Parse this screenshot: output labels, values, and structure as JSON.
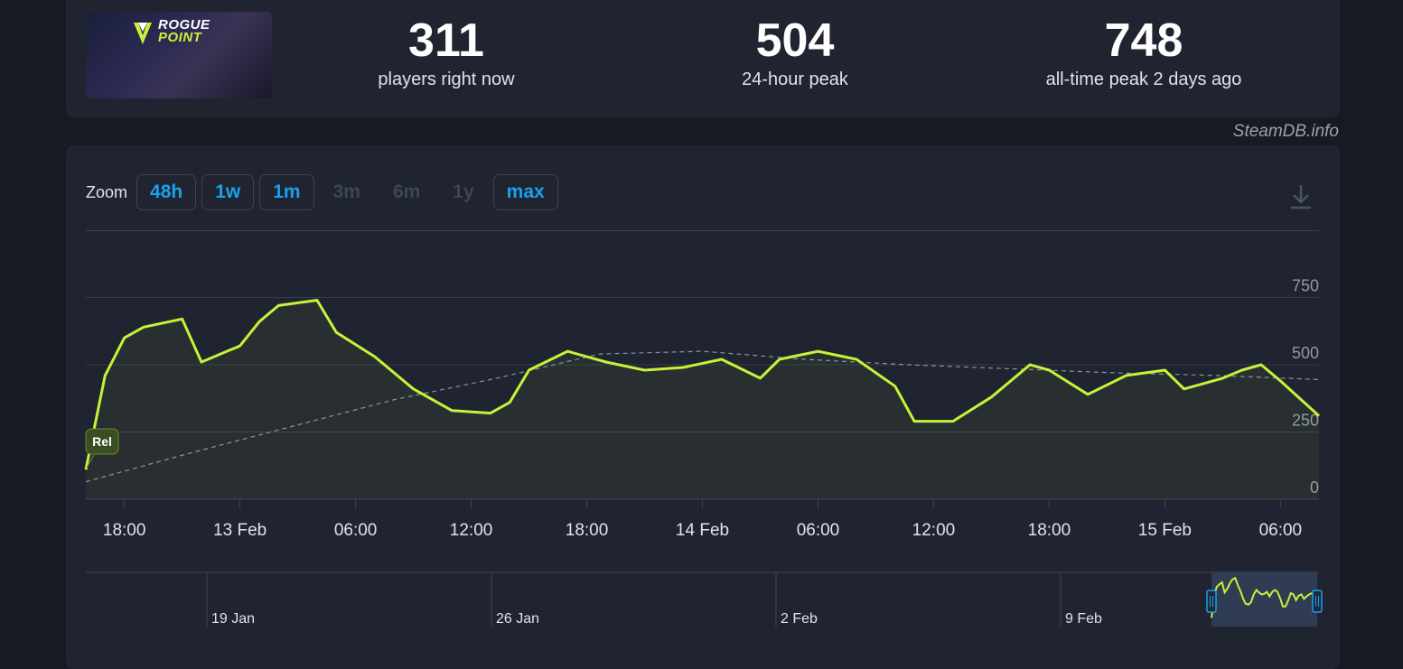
{
  "game": {
    "logo_line1": "ROGUE",
    "logo_line2": "POINT"
  },
  "stats": [
    {
      "value": "311",
      "label": "players right now"
    },
    {
      "value": "504",
      "label": "24-hour peak"
    },
    {
      "value": "748",
      "label": "all-time peak 2 days ago"
    }
  ],
  "brand": "SteamDB.info",
  "zoom": {
    "label": "Zoom",
    "buttons": [
      {
        "label": "48h",
        "enabled": true
      },
      {
        "label": "1w",
        "enabled": true
      },
      {
        "label": "1m",
        "enabled": true
      },
      {
        "label": "3m",
        "enabled": false
      },
      {
        "label": "6m",
        "enabled": false
      },
      {
        "label": "1y",
        "enabled": false
      },
      {
        "label": "max",
        "enabled": true
      }
    ]
  },
  "release_flag": "Rel",
  "colors": {
    "line": "#c6f23a",
    "accent": "#1aa0ee",
    "background": "#1f2430"
  },
  "chart_data": {
    "type": "line",
    "ylim": [
      0,
      1000
    ],
    "y_ticks": [
      0,
      250,
      500,
      750
    ],
    "x_labels": [
      "18:00",
      "13 Feb",
      "06:00",
      "12:00",
      "18:00",
      "14 Feb",
      "06:00",
      "12:00",
      "18:00",
      "15 Feb",
      "06:00"
    ],
    "x": [
      "12 Feb 16:00",
      "12 Feb 17:00",
      "12 Feb 18:00",
      "12 Feb 19:00",
      "12 Feb 21:00",
      "12 Feb 22:00",
      "13 Feb 00:00",
      "13 Feb 01:00",
      "13 Feb 02:00",
      "13 Feb 04:00",
      "13 Feb 05:00",
      "13 Feb 07:00",
      "13 Feb 09:00",
      "13 Feb 11:00",
      "13 Feb 13:00",
      "13 Feb 14:00",
      "13 Feb 15:00",
      "13 Feb 17:00",
      "13 Feb 19:00",
      "13 Feb 21:00",
      "13 Feb 23:00",
      "14 Feb 01:00",
      "14 Feb 03:00",
      "14 Feb 04:00",
      "14 Feb 06:00",
      "14 Feb 08:00",
      "14 Feb 10:00",
      "14 Feb 11:00",
      "14 Feb 13:00",
      "14 Feb 15:00",
      "14 Feb 17:00",
      "14 Feb 18:00",
      "14 Feb 20:00",
      "14 Feb 22:00",
      "15 Feb 00:00",
      "15 Feb 01:00",
      "15 Feb 03:00",
      "15 Feb 04:00",
      "15 Feb 05:00",
      "15 Feb 06:00",
      "15 Feb 08:00"
    ],
    "series": [
      {
        "name": "players",
        "values": [
          110,
          460,
          600,
          640,
          670,
          510,
          570,
          660,
          720,
          740,
          620,
          530,
          410,
          330,
          320,
          360,
          480,
          550,
          510,
          480,
          490,
          520,
          450,
          520,
          550,
          520,
          420,
          290,
          290,
          380,
          500,
          480,
          390,
          460,
          480,
          410,
          450,
          480,
          500,
          440,
          310
        ]
      }
    ],
    "trend_values": [
      65,
      170,
      270,
      370,
      450,
      540,
      550,
      520,
      500,
      485,
      470,
      460,
      445
    ],
    "navigator_labels": [
      "19 Jan",
      "26 Jan",
      "2 Feb",
      "9 Feb"
    ]
  }
}
